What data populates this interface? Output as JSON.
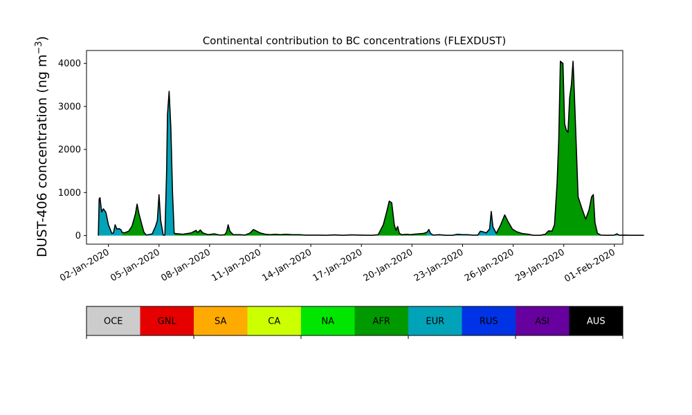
{
  "chart_data": {
    "type": "area",
    "title": "Continental contribution to BC concentrations (FLEXDUST)",
    "ylabel": "DUST-406 concentration (ng m$^{-3}$)",
    "ylabel_main": "DUST-406 concentration (ng m",
    "ylabel_sup": "−3",
    "ylabel_close": ")",
    "xlabel": "",
    "ylim": [
      -200,
      4300
    ],
    "yticks": [
      0,
      1000,
      2000,
      3000,
      4000
    ],
    "ytick_labels": [
      "0",
      "1000",
      "2000",
      "3000",
      "4000"
    ],
    "xlim_days": [
      0.2,
      32.0
    ],
    "xticks_days": [
      1.5,
      4.5,
      7.5,
      10.5,
      13.5,
      16.5,
      19.5,
      22.5,
      25.5,
      28.5,
      31.5
    ],
    "xtick_labels": [
      "02-Jan-2020",
      "05-Jan-2020",
      "08-Jan-2020",
      "11-Jan-2020",
      "14-Jan-2020",
      "17-Jan-2020",
      "20-Jan-2020",
      "23-Jan-2020",
      "26-Jan-2020",
      "29-Jan-2020",
      "01-Feb-2020"
    ],
    "grid": false,
    "outline_color": "#000000",
    "segments": [
      {
        "color": "EUR",
        "points": [
          [
            0.0,
            0
          ],
          [
            0.05,
            850
          ],
          [
            0.1,
            880
          ],
          [
            0.2,
            550
          ],
          [
            0.3,
            620
          ],
          [
            0.45,
            540
          ],
          [
            0.6,
            250
          ],
          [
            0.8,
            50
          ],
          [
            0.9,
            60
          ],
          [
            1.0,
            250
          ],
          [
            1.1,
            150
          ],
          [
            1.25,
            160
          ],
          [
            1.35,
            130
          ],
          [
            1.4,
            80
          ]
        ]
      },
      {
        "color": "AFR",
        "points": [
          [
            1.4,
            80
          ],
          [
            1.55,
            60
          ],
          [
            1.8,
            100
          ],
          [
            2.0,
            220
          ],
          [
            2.2,
            500
          ],
          [
            2.3,
            730
          ],
          [
            2.4,
            520
          ],
          [
            2.55,
            300
          ],
          [
            2.7,
            80
          ],
          [
            2.85,
            10
          ]
        ]
      },
      {
        "color": "EUR",
        "points": [
          [
            2.85,
            10
          ],
          [
            3.2,
            40
          ],
          [
            3.4,
            220
          ],
          [
            3.5,
            350
          ],
          [
            3.6,
            950
          ],
          [
            3.7,
            350
          ],
          [
            3.85,
            10
          ],
          [
            3.95,
            10
          ],
          [
            4.05,
            1500
          ],
          [
            4.1,
            2800
          ],
          [
            4.2,
            3350
          ],
          [
            4.3,
            2500
          ],
          [
            4.4,
            1000
          ],
          [
            4.5,
            50
          ]
        ]
      },
      {
        "color": "AFR",
        "points": [
          [
            4.5,
            50
          ],
          [
            5.0,
            30
          ],
          [
            5.5,
            60
          ],
          [
            5.8,
            120
          ],
          [
            5.9,
            70
          ],
          [
            6.05,
            130
          ],
          [
            6.2,
            60
          ],
          [
            6.5,
            20
          ],
          [
            6.9,
            40
          ],
          [
            7.2,
            10
          ],
          [
            7.5,
            20
          ],
          [
            7.6,
            80
          ],
          [
            7.7,
            250
          ],
          [
            7.8,
            100
          ],
          [
            8.0,
            20
          ],
          [
            8.4,
            20
          ],
          [
            8.7,
            10
          ],
          [
            9.0,
            60
          ],
          [
            9.2,
            140
          ],
          [
            9.4,
            100
          ],
          [
            9.6,
            60
          ],
          [
            9.9,
            30
          ],
          [
            10.2,
            20
          ],
          [
            10.5,
            30
          ],
          [
            10.8,
            20
          ],
          [
            11.1,
            30
          ],
          [
            11.5,
            20
          ],
          [
            11.9,
            20
          ],
          [
            12.3,
            10
          ],
          [
            12.6,
            10
          ],
          [
            13.1,
            10
          ],
          [
            13.5,
            5
          ],
          [
            14.0,
            15
          ],
          [
            14.5,
            5
          ],
          [
            15.0,
            15
          ],
          [
            15.6,
            10
          ],
          [
            16.2,
            5
          ],
          [
            16.6,
            20
          ],
          [
            16.9,
            250
          ],
          [
            17.1,
            550
          ],
          [
            17.25,
            800
          ],
          [
            17.4,
            760
          ],
          [
            17.55,
            250
          ],
          [
            17.65,
            120
          ],
          [
            17.75,
            210
          ],
          [
            17.85,
            50
          ],
          [
            18.0,
            20
          ],
          [
            18.3,
            30
          ],
          [
            18.5,
            20
          ],
          [
            18.7,
            30
          ],
          [
            19.0,
            40
          ],
          [
            19.3,
            50
          ],
          [
            19.5,
            80
          ]
        ]
      },
      {
        "color": "EUR",
        "points": [
          [
            19.5,
            80
          ],
          [
            19.6,
            140
          ],
          [
            19.7,
            50
          ],
          [
            19.85,
            10
          ],
          [
            20.2,
            20
          ],
          [
            20.6,
            5
          ],
          [
            21.0,
            5
          ],
          [
            21.3,
            30
          ],
          [
            21.6,
            20
          ],
          [
            21.9,
            20
          ],
          [
            22.2,
            10
          ],
          [
            22.5,
            10
          ],
          [
            22.65,
            100
          ],
          [
            22.8,
            90
          ],
          [
            23.0,
            60
          ],
          [
            23.2,
            150
          ],
          [
            23.3,
            560
          ],
          [
            23.4,
            200
          ],
          [
            23.6,
            50
          ]
        ]
      },
      {
        "color": "AFR",
        "points": [
          [
            23.6,
            50
          ],
          [
            23.85,
            240
          ],
          [
            24.1,
            480
          ],
          [
            24.3,
            320
          ],
          [
            24.55,
            150
          ],
          [
            24.8,
            90
          ],
          [
            25.1,
            50
          ],
          [
            25.5,
            30
          ],
          [
            25.8,
            5
          ],
          [
            26.2,
            5
          ],
          [
            26.5,
            30
          ],
          [
            26.7,
            110
          ],
          [
            26.9,
            100
          ],
          [
            27.05,
            250
          ],
          [
            27.2,
            1200
          ],
          [
            27.3,
            2200
          ],
          [
            27.4,
            4050
          ],
          [
            27.55,
            4000
          ],
          [
            27.65,
            2600
          ],
          [
            27.75,
            2450
          ],
          [
            27.85,
            2400
          ],
          [
            27.95,
            3200
          ],
          [
            28.05,
            3500
          ],
          [
            28.15,
            4050
          ],
          [
            28.2,
            3600
          ],
          [
            28.3,
            2500
          ],
          [
            28.45,
            900
          ],
          [
            28.7,
            600
          ],
          [
            28.9,
            380
          ],
          [
            29.1,
            600
          ],
          [
            29.25,
            900
          ],
          [
            29.35,
            950
          ],
          [
            29.45,
            300
          ],
          [
            29.6,
            50
          ],
          [
            29.8,
            10
          ],
          [
            30.2,
            5
          ],
          [
            30.6,
            10
          ]
        ]
      },
      {
        "color": "EUR",
        "points": [
          [
            30.6,
            10
          ],
          [
            30.75,
            40
          ],
          [
            30.9,
            5
          ],
          [
            31.2,
            10
          ],
          [
            31.6,
            5
          ],
          [
            32.0,
            5
          ],
          [
            32.35,
            5
          ]
        ]
      }
    ],
    "legend_items": [
      {
        "label": "OCE",
        "color": "#cccccc",
        "text_color": "#000000"
      },
      {
        "label": "GNL",
        "color": "#e60000",
        "text_color": "#000000"
      },
      {
        "label": "SA",
        "color": "#ffaa00",
        "text_color": "#000000"
      },
      {
        "label": "CA",
        "color": "#ccff00",
        "text_color": "#000000"
      },
      {
        "label": "NA",
        "color": "#00e600",
        "text_color": "#000000"
      },
      {
        "label": "AFR",
        "color": "#009900",
        "text_color": "#000000"
      },
      {
        "label": "EUR",
        "color": "#00a3b8",
        "text_color": "#000000"
      },
      {
        "label": "RUS",
        "color": "#0033e6",
        "text_color": "#000000"
      },
      {
        "label": "ASI",
        "color": "#66009e",
        "text_color": "#000000"
      },
      {
        "label": "AUS",
        "color": "#000000",
        "text_color": "#ffffff"
      }
    ]
  }
}
